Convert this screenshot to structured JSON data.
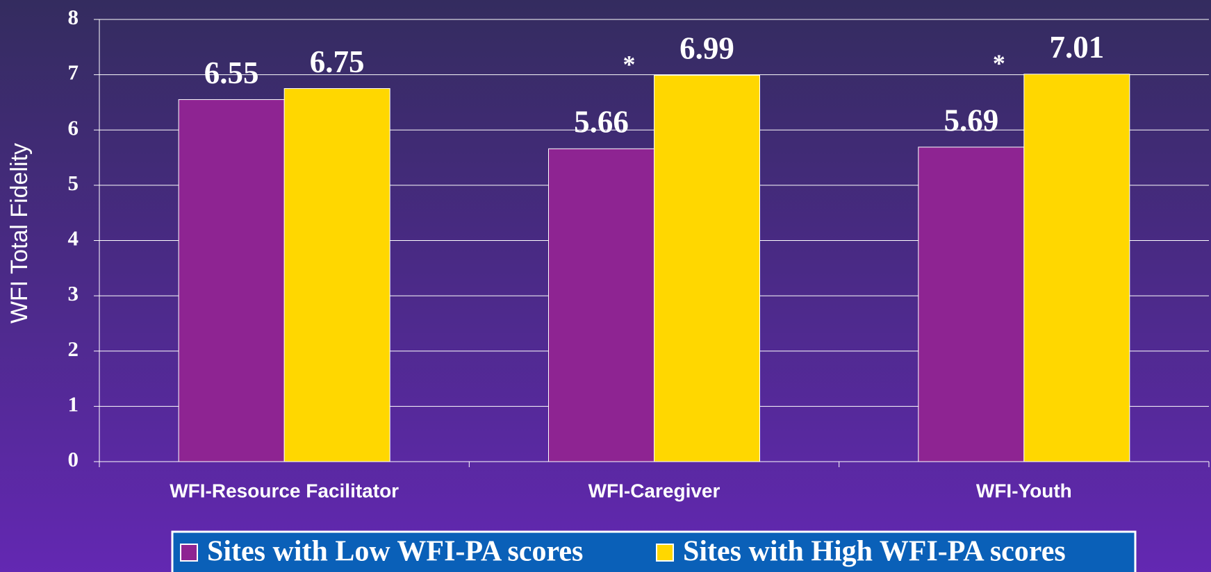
{
  "chart_data": {
    "type": "bar",
    "y_label": "WFI Total Fidelity",
    "categories": [
      "WFI-Resource Facilitator",
      "WFI-Caregiver",
      "WFI-Youth"
    ],
    "series": [
      {
        "name": "Sites with Low WFI-PA scores",
        "color": "#8e2492",
        "values": [
          6.55,
          5.66,
          5.69
        ]
      },
      {
        "name": "Sites with High WFI-PA scores",
        "color": "#ffd700",
        "values": [
          6.75,
          6.99,
          7.01
        ]
      }
    ],
    "significance": [
      null,
      "*",
      "*"
    ],
    "ylim": [
      0,
      8
    ],
    "yticks": [
      0,
      1,
      2,
      3,
      4,
      5,
      6,
      7,
      8
    ],
    "grid": true,
    "legend": "bottom"
  }
}
